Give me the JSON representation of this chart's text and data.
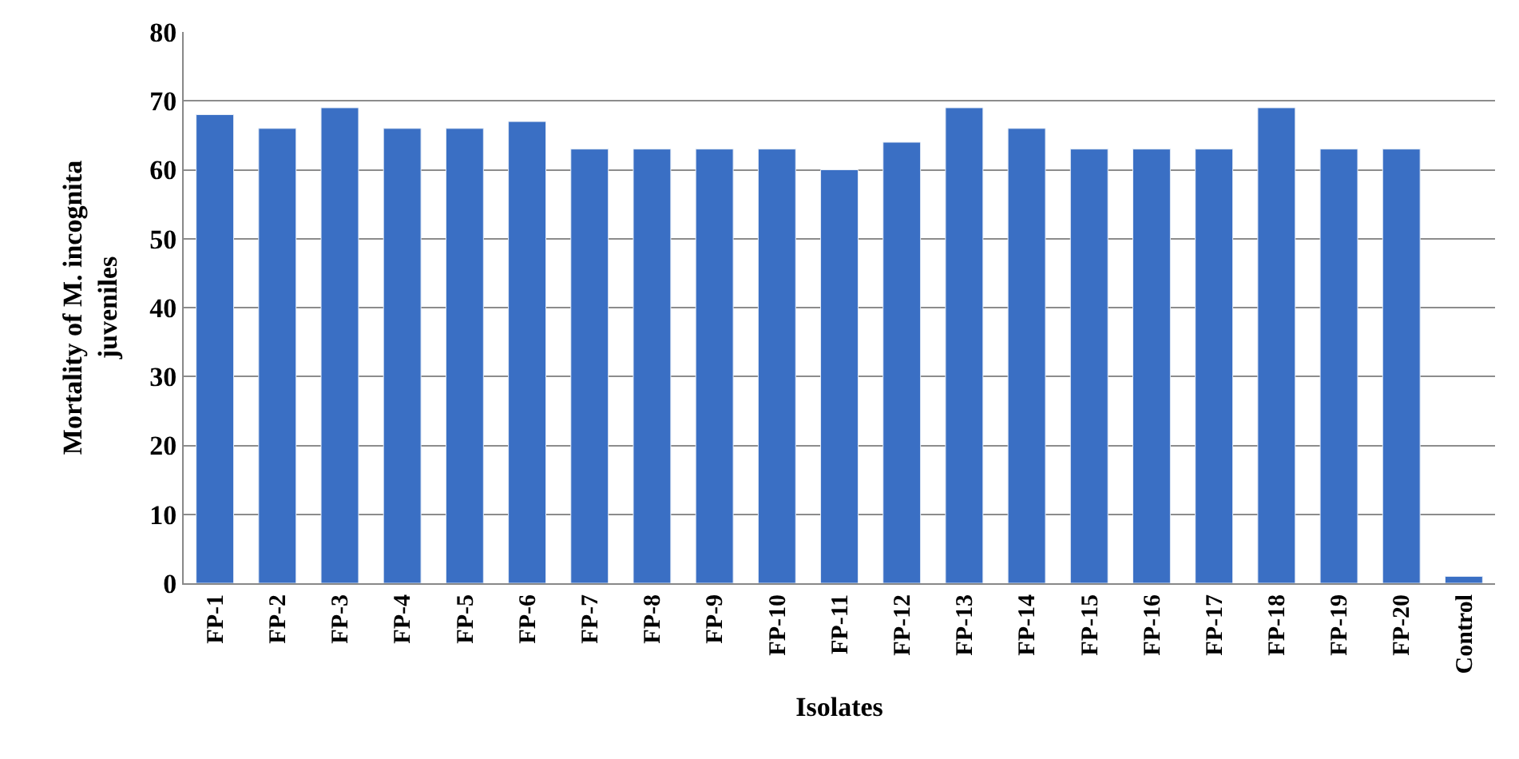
{
  "chart_data": {
    "type": "bar",
    "xlabel": "Isolates",
    "ylabel": "Mortality of M. incognita\njuveniles",
    "categories": [
      "FP-1",
      "FP-2",
      "FP-3",
      "FP-4",
      "FP-5",
      "FP-6",
      "FP-7",
      "FP-8",
      "FP-9",
      "FP-10",
      "FP-11",
      "FP-12",
      "FP-13",
      "FP-14",
      "FP-15",
      "FP-16",
      "FP-17",
      "FP-18",
      "FP-19",
      "FP-20",
      "Control"
    ],
    "values": [
      68,
      66,
      69,
      66,
      66,
      67,
      63,
      63,
      63,
      63,
      60,
      64,
      69,
      66,
      63,
      63,
      63,
      69,
      63,
      63,
      1
    ],
    "color": "#3a6fc4",
    "ylim": [
      0,
      80
    ],
    "yticks": [
      0,
      10,
      20,
      30,
      40,
      50,
      60,
      70,
      80
    ],
    "grid": "y"
  }
}
